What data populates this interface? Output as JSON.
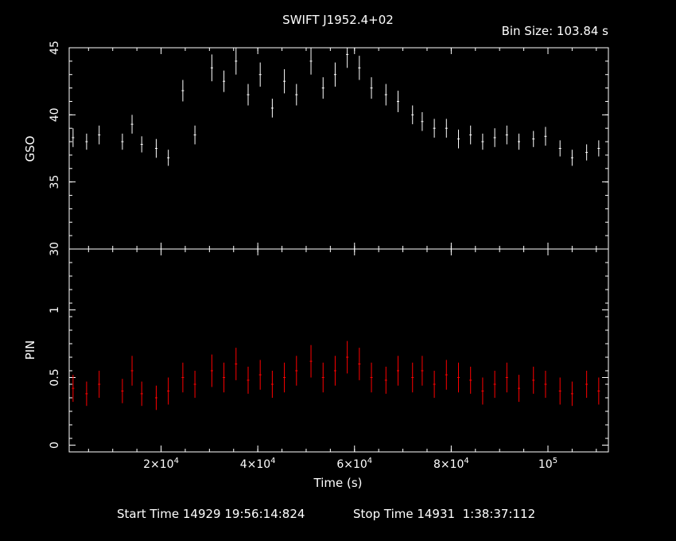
{
  "title": "SWIFT J1952.4+02",
  "bin_size": "Bin Size: 103.84 s",
  "start_time": "Start Time 14929 19:56:14:824",
  "stop_time": "Stop Time 14931  1:38:37:112",
  "colors": {
    "gso": "#ffffff",
    "pin": "#ff0000",
    "axes": "#ffffff"
  },
  "chart_data": [
    {
      "type": "scatter",
      "panel": "top",
      "ylabel": "GSO",
      "ylim": [
        30,
        45
      ],
      "yticks": [
        30,
        35,
        40,
        45
      ],
      "xlim": [
        1000,
        112500
      ],
      "grid": false,
      "series": [
        {
          "color": "#ffffff",
          "x": [
            1800,
            4600,
            7200,
            12000,
            14000,
            16000,
            19000,
            21500,
            24500,
            27000,
            30500,
            33000,
            35500,
            38000,
            40500,
            43000,
            45500,
            48000,
            51000,
            53500,
            56000,
            58500,
            61000,
            63500,
            66500,
            69000,
            72000,
            74000,
            76500,
            79000,
            81500,
            84000,
            86500,
            89000,
            91500,
            94000,
            97000,
            99500,
            102500,
            105000,
            108000,
            110500
          ],
          "y": [
            38.3,
            38.0,
            38.5,
            38.0,
            39.3,
            37.8,
            37.5,
            36.8,
            41.8,
            38.5,
            43.5,
            42.5,
            44.0,
            41.5,
            43.0,
            40.5,
            42.5,
            41.5,
            44.0,
            42.0,
            43.0,
            44.5,
            43.5,
            42.0,
            41.5,
            41.0,
            40.0,
            39.5,
            39.0,
            39.0,
            38.2,
            38.5,
            38.0,
            38.3,
            38.5,
            38.0,
            38.2,
            38.4,
            37.5,
            36.8,
            37.2,
            37.5
          ],
          "err": [
            0.7,
            0.6,
            0.7,
            0.6,
            0.7,
            0.6,
            0.7,
            0.6,
            0.8,
            0.7,
            1.0,
            0.8,
            1.0,
            0.8,
            0.9,
            0.7,
            0.9,
            0.8,
            1.0,
            0.8,
            0.9,
            1.0,
            0.9,
            0.8,
            0.8,
            0.8,
            0.7,
            0.7,
            0.7,
            0.7,
            0.7,
            0.7,
            0.6,
            0.7,
            0.7,
            0.6,
            0.6,
            0.7,
            0.6,
            0.6,
            0.6,
            0.6
          ]
        }
      ]
    },
    {
      "type": "scatter",
      "panel": "bottom",
      "ylabel": "PIN",
      "ylim": [
        -0.05,
        1.45
      ],
      "ytick_values": [
        0,
        0.5,
        1
      ],
      "ytick_labels": [
        "0",
        "0.5",
        "1"
      ],
      "xlim": [
        1000,
        112500
      ],
      "xticks": [
        20000,
        40000,
        60000,
        80000,
        100000
      ],
      "xtick_mant": [
        "2×10",
        "4×10",
        "6×10",
        "8×10",
        "10"
      ],
      "xtick_exp": [
        "4",
        "4",
        "4",
        "4",
        "5"
      ],
      "xlabel": "Time (s)",
      "grid": false,
      "series": [
        {
          "color": "#ff0000",
          "x": [
            1800,
            4600,
            7200,
            12000,
            14000,
            16000,
            19000,
            21500,
            24500,
            27000,
            30500,
            33000,
            35500,
            38000,
            40500,
            43000,
            45500,
            48000,
            51000,
            53500,
            56000,
            58500,
            61000,
            63500,
            66500,
            69000,
            72000,
            74000,
            76500,
            79000,
            81500,
            84000,
            86500,
            89000,
            91500,
            94000,
            97000,
            99500,
            102500,
            105000,
            108000,
            110500
          ],
          "y": [
            0.42,
            0.38,
            0.45,
            0.4,
            0.55,
            0.38,
            0.35,
            0.4,
            0.5,
            0.45,
            0.55,
            0.5,
            0.6,
            0.48,
            0.52,
            0.45,
            0.5,
            0.55,
            0.62,
            0.5,
            0.55,
            0.65,
            0.6,
            0.5,
            0.48,
            0.55,
            0.5,
            0.55,
            0.45,
            0.52,
            0.5,
            0.48,
            0.4,
            0.45,
            0.5,
            0.42,
            0.48,
            0.45,
            0.4,
            0.38,
            0.45,
            0.4
          ],
          "err": [
            0.1,
            0.09,
            0.1,
            0.09,
            0.11,
            0.09,
            0.09,
            0.1,
            0.11,
            0.1,
            0.12,
            0.11,
            0.12,
            0.1,
            0.11,
            0.1,
            0.11,
            0.11,
            0.12,
            0.11,
            0.11,
            0.12,
            0.12,
            0.11,
            0.1,
            0.11,
            0.11,
            0.11,
            0.1,
            0.11,
            0.11,
            0.1,
            0.1,
            0.1,
            0.11,
            0.1,
            0.1,
            0.1,
            0.1,
            0.09,
            0.1,
            0.1
          ]
        }
      ]
    }
  ]
}
